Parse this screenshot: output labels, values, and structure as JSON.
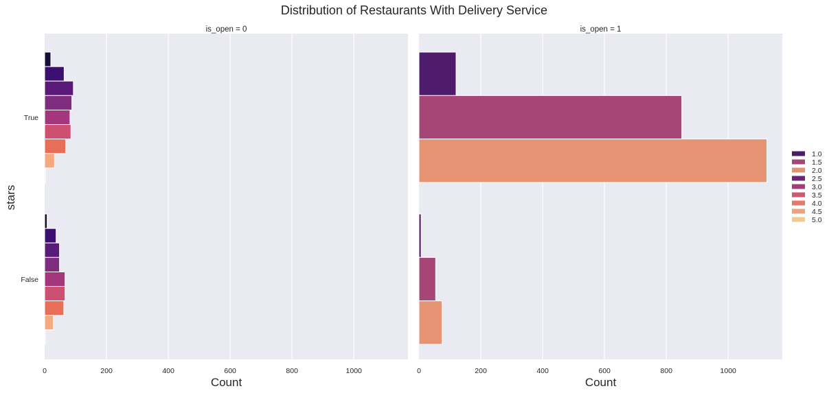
{
  "chart_data": {
    "type": "bar",
    "orientation": "horizontal",
    "title": "Distribution of Restaurants With Delivery Service",
    "xlabel": "Count",
    "ylabel": "stars",
    "xlim": [
      0,
      1175
    ],
    "x_ticks": [
      0,
      200,
      400,
      600,
      800,
      1000
    ],
    "categories": [
      "True",
      "False"
    ],
    "grid": true,
    "legend_position": "right",
    "legend": [
      {
        "label": "1.0",
        "color": "#4f1c6c"
      },
      {
        "label": "1.5",
        "color": "#a54677"
      },
      {
        "label": "2.0",
        "color": "#e69373"
      },
      {
        "label": "2.5",
        "color": "#6b2478"
      },
      {
        "label": "3.0",
        "color": "#a33d79"
      },
      {
        "label": "3.5",
        "color": "#cf5875"
      },
      {
        "label": "4.0",
        "color": "#e47a6a"
      },
      {
        "label": "4.5",
        "color": "#eea17f"
      },
      {
        "label": "5.0",
        "color": "#f2c98f"
      }
    ],
    "facets": [
      {
        "title": "is_open = 0",
        "bar_groups": [
          {
            "category": "True",
            "bars": [
              {
                "value": 20,
                "color": "#150e37"
              },
              {
                "value": 63,
                "color": "#3b0f70"
              },
              {
                "value": 93,
                "color": "#5a1a7a"
              },
              {
                "value": 88,
                "color": "#7d2c7e"
              },
              {
                "value": 82,
                "color": "#a3367c"
              },
              {
                "value": 85,
                "color": "#cd4f72"
              },
              {
                "value": 68,
                "color": "#e76f5a"
              },
              {
                "value": 32,
                "color": "#f6a87e"
              },
              {
                "value": 3,
                "color": "#f8d39b"
              }
            ]
          },
          {
            "category": "False",
            "bars": [
              {
                "value": 8,
                "color": "#150e37"
              },
              {
                "value": 37,
                "color": "#3b0f70"
              },
              {
                "value": 48,
                "color": "#5a1a7a"
              },
              {
                "value": 48,
                "color": "#7d2c7e"
              },
              {
                "value": 66,
                "color": "#a3367c"
              },
              {
                "value": 66,
                "color": "#cd4f72"
              },
              {
                "value": 62,
                "color": "#e76f5a"
              },
              {
                "value": 28,
                "color": "#f6a87e"
              },
              {
                "value": 2,
                "color": "#f8d39b"
              }
            ]
          }
        ]
      },
      {
        "title": "is_open = 1",
        "bar_groups": [
          {
            "category": "True",
            "bars": [
              {
                "value": 120,
                "color": "#4f1c6c"
              },
              {
                "value": 850,
                "color": "#a54677"
              },
              {
                "value": 1125,
                "color": "#e69373"
              }
            ]
          },
          {
            "category": "False",
            "bars": [
              {
                "value": 7,
                "color": "#4f1c6c"
              },
              {
                "value": 54,
                "color": "#a54677"
              },
              {
                "value": 75,
                "color": "#e69373"
              }
            ]
          }
        ]
      }
    ]
  }
}
